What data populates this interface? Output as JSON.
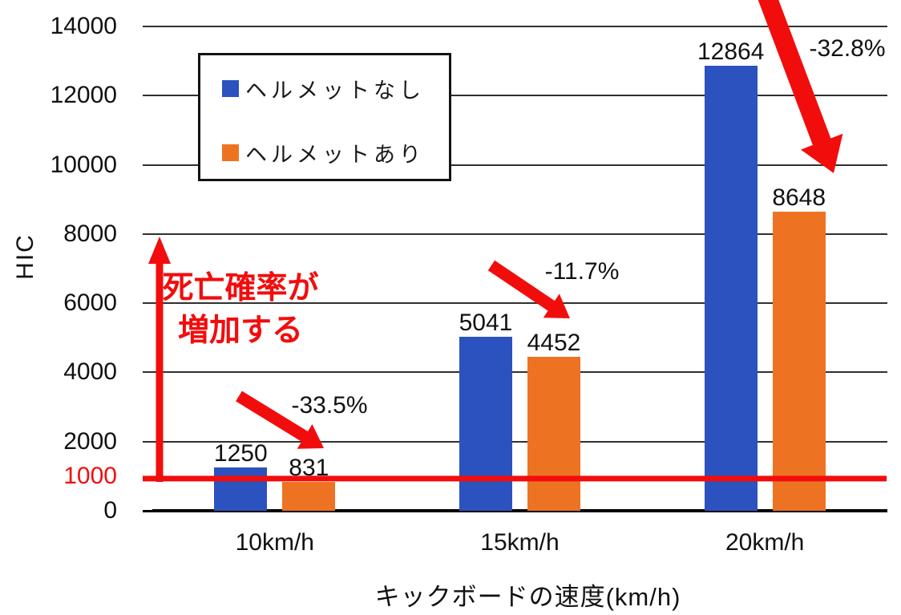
{
  "chart_data": {
    "type": "bar",
    "title": "",
    "xlabel": "キックボードの速度(km/h)",
    "ylabel": "HIC",
    "categories": [
      "10km/h",
      "15km/h",
      "20km/h"
    ],
    "series": [
      {
        "name": "ヘルメットなし",
        "color": "#2B52BE",
        "values": [
          1250,
          5041,
          12864
        ]
      },
      {
        "name": "ヘルメットあり",
        "color": "#ED7323",
        "values": [
          831,
          4452,
          8648
        ]
      }
    ],
    "ylim": [
      0,
      14000
    ],
    "yticks": [
      0,
      2000,
      4000,
      6000,
      8000,
      10000,
      12000,
      14000
    ],
    "grid": true,
    "legend_position": "top-left inside plot",
    "reference_line": {
      "value": 1000,
      "label": "1000",
      "color": "#F20D0D"
    },
    "annotations": {
      "percent_reduction_labels": [
        {
          "text": "-33.5%",
          "category": "10km/h"
        },
        {
          "text": "-11.7%",
          "category": "15km/h"
        },
        {
          "text": "-32.8%",
          "category": "20km/h"
        }
      ],
      "risk_note": {
        "line1": "死亡確率が",
        "line2": "増加する",
        "color": "#F20D0D"
      }
    }
  },
  "colors": {
    "helmet_off_blue": "#2B52BE",
    "helmet_on_orange": "#ED7323",
    "red": "#F20D0D",
    "gridline": "#303030",
    "axis": "#000000",
    "text": "#111111",
    "background": "#ffffff"
  }
}
